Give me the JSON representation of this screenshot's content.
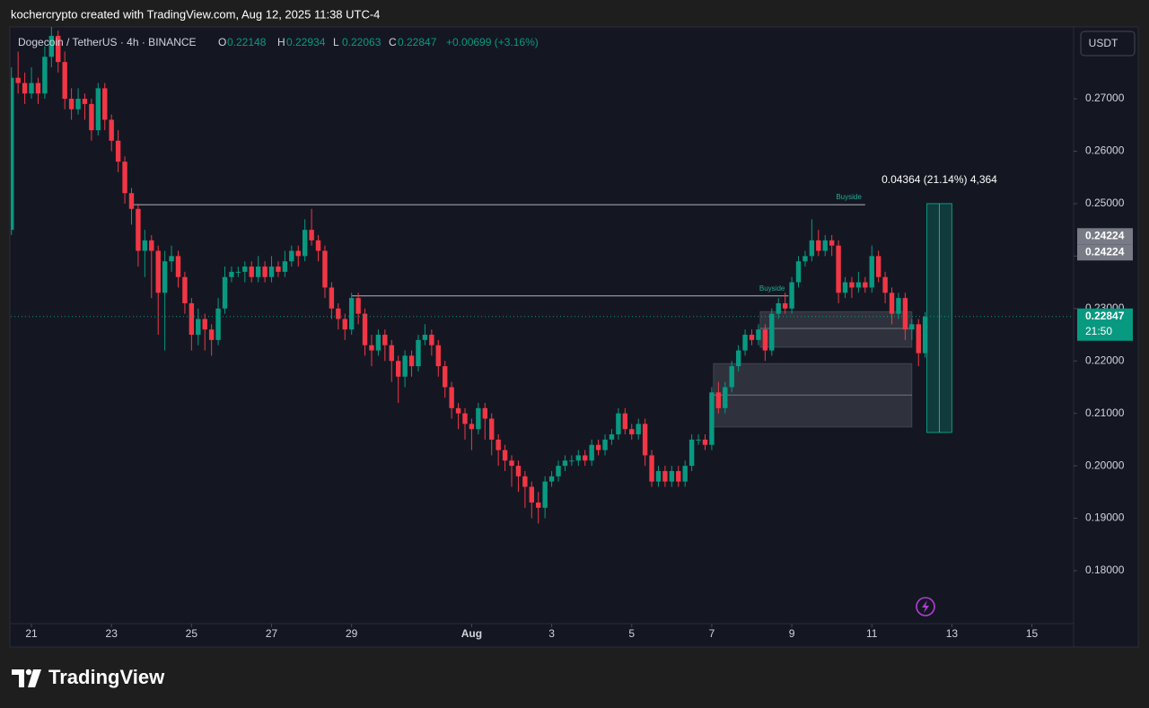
{
  "header": "kochercrypto created with TradingView.com, Aug 12, 2025 11:38 UTC-4",
  "brand": "TradingView",
  "chart_data": {
    "type": "candlestick",
    "title": "Dogecoin / TetherUS · 4h · BINANCE",
    "ohlc_labels": [
      "O",
      "H",
      "L",
      "C"
    ],
    "change": "+0.00699 (+3.16%)",
    "currency": "USDT",
    "countdown": "21:50",
    "colors": {
      "up": "#089981",
      "down": "#f23645"
    },
    "xlim": [
      -12.4,
      625
    ],
    "ylim": [
      0.1699,
      0.2837
    ],
    "grid": false,
    "xticks": [
      {
        "value": 0,
        "label": "21"
      },
      {
        "value": 48,
        "label": "23"
      },
      {
        "value": 96,
        "label": "25"
      },
      {
        "value": 144,
        "label": "27"
      },
      {
        "value": 192,
        "label": "29"
      },
      {
        "value": 264,
        "label": "Aug"
      },
      {
        "value": 312,
        "label": "3"
      },
      {
        "value": 360,
        "label": "5"
      },
      {
        "value": 408,
        "label": "7"
      },
      {
        "value": 456,
        "label": "9"
      },
      {
        "value": 504,
        "label": "11"
      },
      {
        "value": 552,
        "label": "13"
      },
      {
        "value": 600,
        "label": "15"
      }
    ],
    "yticks": [
      {
        "value": 0.18,
        "label": "0.18000"
      },
      {
        "value": 0.19,
        "label": "0.19000"
      },
      {
        "value": 0.2,
        "label": "0.20000"
      },
      {
        "value": 0.21,
        "label": "0.21000"
      },
      {
        "value": 0.22,
        "label": "0.22000"
      },
      {
        "value": 0.23,
        "label": "0.23000"
      },
      {
        "value": 0.24,
        "label": "0.24000"
      },
      {
        "value": 0.25,
        "label": "0.25000"
      },
      {
        "value": 0.26,
        "label": "0.26000"
      },
      {
        "value": 0.27,
        "label": "0.27000"
      }
    ],
    "x": [
      -12,
      -8,
      -4,
      0,
      4,
      8,
      12,
      16,
      20,
      24,
      28,
      32,
      36,
      40,
      44,
      48,
      52,
      56,
      60,
      64,
      68,
      72,
      76,
      80,
      84,
      88,
      92,
      96,
      100,
      104,
      108,
      112,
      116,
      120,
      124,
      128,
      132,
      136,
      140,
      144,
      148,
      152,
      156,
      160,
      164,
      168,
      172,
      176,
      180,
      184,
      188,
      192,
      196,
      200,
      204,
      208,
      212,
      216,
      220,
      224,
      228,
      232,
      236,
      240,
      244,
      248,
      252,
      256,
      260,
      264,
      268,
      272,
      276,
      280,
      284,
      288,
      292,
      296,
      300,
      304,
      308,
      312,
      316,
      320,
      324,
      328,
      332,
      336,
      340,
      344,
      348,
      352,
      356,
      360,
      364,
      368,
      372,
      376,
      380,
      384,
      388,
      392,
      396,
      400,
      404,
      408,
      412,
      416,
      420,
      424,
      428,
      432,
      436,
      440,
      444,
      448,
      452,
      456,
      460,
      464,
      468,
      472,
      476,
      480,
      484,
      488,
      492,
      496,
      500,
      504,
      508,
      512,
      516,
      520,
      524,
      528,
      532,
      536
    ],
    "ohlc": [
      [
        0.245,
        0.276,
        0.244,
        0.274
      ],
      [
        0.274,
        0.279,
        0.271,
        0.273
      ],
      [
        0.273,
        0.275,
        0.269,
        0.271
      ],
      [
        0.271,
        0.276,
        0.27,
        0.273
      ],
      [
        0.273,
        0.274,
        0.269,
        0.271
      ],
      [
        0.271,
        0.28,
        0.27,
        0.278
      ],
      [
        0.278,
        0.284,
        0.276,
        0.282
      ],
      [
        0.282,
        0.283,
        0.275,
        0.277
      ],
      [
        0.277,
        0.279,
        0.268,
        0.27
      ],
      [
        0.27,
        0.272,
        0.266,
        0.268
      ],
      [
        0.268,
        0.272,
        0.267,
        0.27
      ],
      [
        0.27,
        0.271,
        0.266,
        0.269
      ],
      [
        0.269,
        0.27,
        0.262,
        0.264
      ],
      [
        0.264,
        0.273,
        0.263,
        0.272
      ],
      [
        0.272,
        0.273,
        0.264,
        0.266
      ],
      [
        0.266,
        0.267,
        0.26,
        0.262
      ],
      [
        0.262,
        0.264,
        0.256,
        0.258
      ],
      [
        0.258,
        0.259,
        0.25,
        0.252
      ],
      [
        0.252,
        0.253,
        0.246,
        0.249
      ],
      [
        0.249,
        0.25,
        0.238,
        0.241
      ],
      [
        0.241,
        0.245,
        0.236,
        0.243
      ],
      [
        0.243,
        0.244,
        0.232,
        0.241
      ],
      [
        0.241,
        0.242,
        0.225,
        0.233
      ],
      [
        0.233,
        0.241,
        0.222,
        0.239
      ],
      [
        0.239,
        0.242,
        0.237,
        0.24
      ],
      [
        0.24,
        0.241,
        0.234,
        0.236
      ],
      [
        0.236,
        0.237,
        0.229,
        0.231
      ],
      [
        0.231,
        0.232,
        0.222,
        0.225
      ],
      [
        0.225,
        0.23,
        0.223,
        0.228
      ],
      [
        0.228,
        0.229,
        0.222,
        0.226
      ],
      [
        0.226,
        0.227,
        0.221,
        0.224
      ],
      [
        0.224,
        0.232,
        0.223,
        0.23
      ],
      [
        0.23,
        0.238,
        0.229,
        0.236
      ],
      [
        0.236,
        0.238,
        0.235,
        0.237
      ],
      [
        0.237,
        0.238,
        0.236,
        0.237
      ],
      [
        0.237,
        0.239,
        0.235,
        0.238
      ],
      [
        0.238,
        0.239,
        0.235,
        0.236
      ],
      [
        0.236,
        0.24,
        0.235,
        0.238
      ],
      [
        0.238,
        0.239,
        0.235,
        0.236
      ],
      [
        0.236,
        0.24,
        0.235,
        0.238
      ],
      [
        0.238,
        0.239,
        0.236,
        0.237
      ],
      [
        0.237,
        0.241,
        0.236,
        0.239
      ],
      [
        0.239,
        0.242,
        0.238,
        0.241
      ],
      [
        0.241,
        0.242,
        0.238,
        0.24
      ],
      [
        0.24,
        0.247,
        0.239,
        0.245
      ],
      [
        0.245,
        0.249,
        0.242,
        0.243
      ],
      [
        0.243,
        0.244,
        0.239,
        0.241
      ],
      [
        0.241,
        0.242,
        0.232,
        0.234
      ],
      [
        0.234,
        0.235,
        0.228,
        0.23
      ],
      [
        0.23,
        0.231,
        0.226,
        0.228
      ],
      [
        0.228,
        0.229,
        0.224,
        0.226
      ],
      [
        0.226,
        0.233,
        0.225,
        0.232
      ],
      [
        0.232,
        0.233,
        0.227,
        0.229
      ],
      [
        0.229,
        0.23,
        0.221,
        0.223
      ],
      [
        0.223,
        0.225,
        0.219,
        0.222
      ],
      [
        0.222,
        0.226,
        0.221,
        0.225
      ],
      [
        0.225,
        0.226,
        0.22,
        0.223
      ],
      [
        0.223,
        0.224,
        0.216,
        0.22
      ],
      [
        0.22,
        0.221,
        0.212,
        0.217
      ],
      [
        0.217,
        0.222,
        0.215,
        0.221
      ],
      [
        0.221,
        0.222,
        0.217,
        0.219
      ],
      [
        0.219,
        0.225,
        0.218,
        0.224
      ],
      [
        0.224,
        0.227,
        0.223,
        0.225
      ],
      [
        0.225,
        0.226,
        0.221,
        0.223
      ],
      [
        0.223,
        0.224,
        0.217,
        0.219
      ],
      [
        0.219,
        0.22,
        0.213,
        0.215
      ],
      [
        0.215,
        0.216,
        0.209,
        0.211
      ],
      [
        0.211,
        0.212,
        0.207,
        0.21
      ],
      [
        0.21,
        0.211,
        0.205,
        0.208
      ],
      [
        0.208,
        0.209,
        0.203,
        0.207
      ],
      [
        0.207,
        0.212,
        0.206,
        0.211
      ],
      [
        0.211,
        0.212,
        0.205,
        0.209
      ],
      [
        0.209,
        0.21,
        0.202,
        0.205
      ],
      [
        0.205,
        0.206,
        0.2,
        0.203
      ],
      [
        0.203,
        0.204,
        0.199,
        0.201
      ],
      [
        0.201,
        0.202,
        0.196,
        0.2
      ],
      [
        0.2,
        0.201,
        0.195,
        0.198
      ],
      [
        0.198,
        0.199,
        0.192,
        0.196
      ],
      [
        0.196,
        0.197,
        0.19,
        0.193
      ],
      [
        0.193,
        0.195,
        0.189,
        0.192
      ],
      [
        0.192,
        0.198,
        0.19,
        0.197
      ],
      [
        0.197,
        0.199,
        0.196,
        0.198
      ],
      [
        0.198,
        0.201,
        0.197,
        0.2
      ],
      [
        0.2,
        0.202,
        0.199,
        0.201
      ],
      [
        0.201,
        0.202,
        0.2,
        0.201
      ],
      [
        0.201,
        0.203,
        0.2,
        0.202
      ],
      [
        0.202,
        0.203,
        0.2,
        0.201
      ],
      [
        0.201,
        0.205,
        0.2,
        0.204
      ],
      [
        0.204,
        0.205,
        0.202,
        0.203
      ],
      [
        0.203,
        0.206,
        0.202,
        0.205
      ],
      [
        0.205,
        0.207,
        0.204,
        0.206
      ],
      [
        0.206,
        0.211,
        0.205,
        0.21
      ],
      [
        0.21,
        0.211,
        0.206,
        0.207
      ],
      [
        0.207,
        0.208,
        0.205,
        0.206
      ],
      [
        0.206,
        0.209,
        0.205,
        0.208
      ],
      [
        0.208,
        0.209,
        0.2,
        0.202
      ],
      [
        0.202,
        0.203,
        0.196,
        0.197
      ],
      [
        0.197,
        0.2,
        0.196,
        0.199
      ],
      [
        0.199,
        0.2,
        0.196,
        0.197
      ],
      [
        0.197,
        0.2,
        0.196,
        0.199
      ],
      [
        0.199,
        0.2,
        0.196,
        0.197
      ],
      [
        0.197,
        0.201,
        0.196,
        0.2
      ],
      [
        0.2,
        0.206,
        0.199,
        0.205
      ],
      [
        0.205,
        0.206,
        0.204,
        0.205
      ],
      [
        0.205,
        0.206,
        0.203,
        0.204
      ],
      [
        0.204,
        0.215,
        0.203,
        0.214
      ],
      [
        0.214,
        0.216,
        0.21,
        0.211
      ],
      [
        0.211,
        0.216,
        0.21,
        0.215
      ],
      [
        0.215,
        0.22,
        0.214,
        0.219
      ],
      [
        0.219,
        0.223,
        0.218,
        0.222
      ],
      [
        0.222,
        0.226,
        0.221,
        0.225
      ],
      [
        0.225,
        0.226,
        0.223,
        0.224
      ],
      [
        0.224,
        0.227,
        0.223,
        0.226
      ],
      [
        0.226,
        0.227,
        0.22,
        0.222
      ],
      [
        0.222,
        0.23,
        0.221,
        0.229
      ],
      [
        0.229,
        0.232,
        0.228,
        0.231
      ],
      [
        0.231,
        0.233,
        0.229,
        0.23
      ],
      [
        0.23,
        0.236,
        0.229,
        0.235
      ],
      [
        0.235,
        0.24,
        0.234,
        0.239
      ],
      [
        0.239,
        0.241,
        0.238,
        0.24
      ],
      [
        0.24,
        0.247,
        0.239,
        0.243
      ],
      [
        0.243,
        0.245,
        0.24,
        0.241
      ],
      [
        0.241,
        0.244,
        0.24,
        0.243
      ],
      [
        0.243,
        0.244,
        0.24,
        0.242
      ],
      [
        0.242,
        0.243,
        0.231,
        0.233
      ],
      [
        0.233,
        0.236,
        0.232,
        0.235
      ],
      [
        0.235,
        0.236,
        0.232,
        0.234
      ],
      [
        0.234,
        0.237,
        0.233,
        0.235
      ],
      [
        0.235,
        0.236,
        0.233,
        0.234
      ],
      [
        0.234,
        0.242,
        0.233,
        0.24
      ],
      [
        0.24,
        0.241,
        0.235,
        0.236
      ],
      [
        0.236,
        0.237,
        0.231,
        0.233
      ],
      [
        0.233,
        0.234,
        0.227,
        0.229
      ],
      [
        0.229,
        0.233,
        0.228,
        0.232
      ],
      [
        0.232,
        0.233,
        0.224,
        0.226
      ],
      [
        0.226,
        0.228,
        0.224,
        0.227
      ],
      [
        0.227,
        0.228,
        0.219,
        0.22148
      ],
      [
        0.22148,
        0.22934,
        0.22063,
        0.22847
      ]
    ],
    "hlines": [
      {
        "label": "Buyside",
        "y": 0.2498,
        "x": [
          61,
          500
        ]
      },
      {
        "label": "Buyside",
        "y": 0.2324,
        "x": [
          192,
          454
        ]
      }
    ],
    "zones": [
      {
        "top": 0.2294,
        "bottom": 0.2226,
        "mid": 0.2262,
        "x": [
          437,
          528
        ]
      },
      {
        "top": 0.2195,
        "bottom": 0.2074,
        "mid": 0.2135,
        "x": [
          409,
          528
        ]
      }
    ],
    "position": {
      "label": "0.04364 (21.14%) 4,364",
      "top": 0.25,
      "bottom": 0.20636,
      "x": [
        537,
        552
      ]
    },
    "price_labels": [
      0.24224,
      0.24224
    ]
  }
}
